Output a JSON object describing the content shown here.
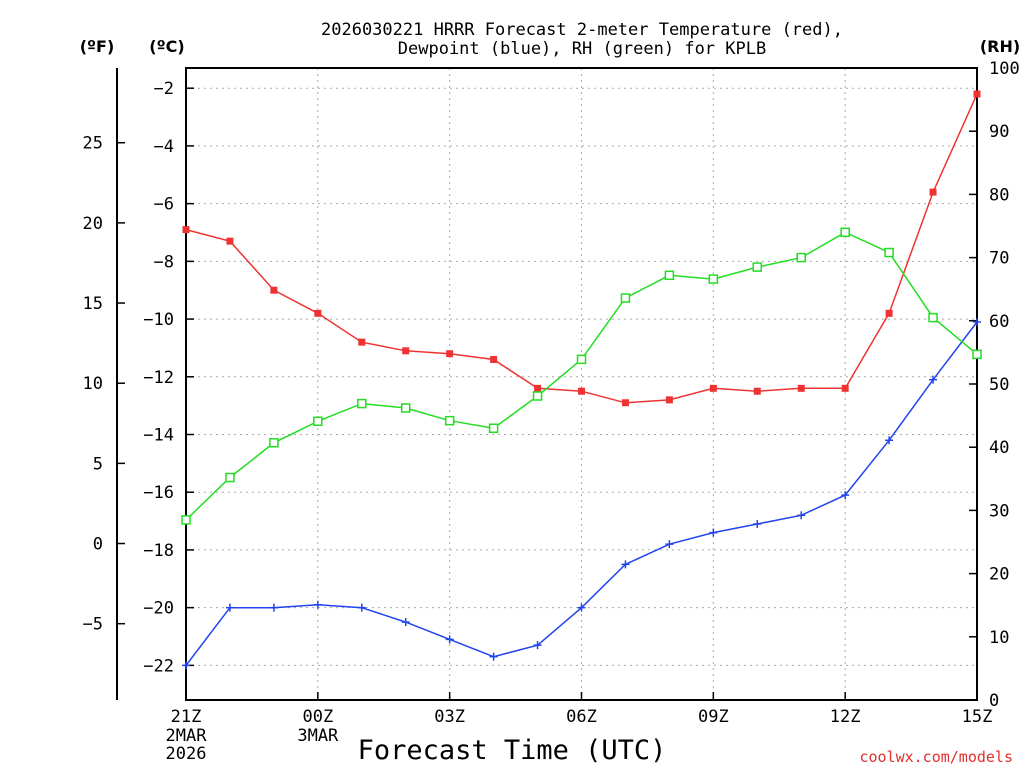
{
  "chart_data": {
    "type": "line",
    "title_line1": "2026030221 HRRR Forecast 2-meter Temperature (red),",
    "title_line2": "Dewpoint (blue), RH (green) for KPLB",
    "xlabel": "Forecast Time (UTC)",
    "unit_f": "(ºF)",
    "unit_c": "(ºC)",
    "unit_rh": "(RH)",
    "credit": "coolwx.com/models",
    "x_hours": [
      0,
      1,
      2,
      3,
      4,
      5,
      6,
      7,
      8,
      9,
      10,
      11,
      12,
      13,
      14,
      15,
      16,
      17,
      18
    ],
    "x_ticks": [
      {
        "h": 0,
        "label": "21Z",
        "sub1": "2MAR",
        "sub2": "2026"
      },
      {
        "h": 3,
        "label": "00Z",
        "sub1": "3MAR",
        "sub2": ""
      },
      {
        "h": 6,
        "label": "03Z",
        "sub1": "",
        "sub2": ""
      },
      {
        "h": 9,
        "label": "06Z",
        "sub1": "",
        "sub2": ""
      },
      {
        "h": 12,
        "label": "09Z",
        "sub1": "",
        "sub2": ""
      },
      {
        "h": 15,
        "label": "12Z",
        "sub1": "",
        "sub2": ""
      },
      {
        "h": 18,
        "label": "15Z",
        "sub1": "",
        "sub2": ""
      }
    ],
    "c_ticks": [
      -2,
      -4,
      -6,
      -8,
      -10,
      -12,
      -14,
      -16,
      -18,
      -20,
      -22
    ],
    "c_range": [
      -23.2,
      -1.3
    ],
    "f_ticks": [
      25,
      20,
      15,
      10,
      5,
      0,
      -5
    ],
    "rh_ticks": [
      0,
      10,
      20,
      30,
      40,
      50,
      60,
      70,
      80,
      90,
      100
    ],
    "rh_range": [
      0,
      100
    ],
    "series": [
      {
        "name": "Temperature",
        "unit": "C",
        "color": "#ee3333",
        "marker": "filled-square",
        "values": [
          -6.9,
          -7.3,
          -9.0,
          -9.8,
          -10.8,
          -11.1,
          -11.2,
          -11.4,
          -12.4,
          -12.5,
          -12.9,
          -12.8,
          -12.4,
          -12.5,
          -12.4,
          -12.4,
          -9.8,
          -5.6,
          -2.2
        ]
      },
      {
        "name": "Dewpoint",
        "unit": "C",
        "color": "#2244ee",
        "marker": "plus",
        "values": [
          -22.0,
          -20.0,
          -20.0,
          -19.9,
          -20.0,
          -20.5,
          -21.1,
          -21.7,
          -21.3,
          -20.0,
          -18.5,
          -17.8,
          -17.4,
          -17.1,
          -16.8,
          -16.1,
          -14.2,
          -12.1,
          -10.1
        ]
      },
      {
        "name": "RH",
        "unit": "%",
        "color": "#22dd22",
        "marker": "open-square",
        "values": [
          28.5,
          35.2,
          40.7,
          44.1,
          46.9,
          46.2,
          44.2,
          43.0,
          48.1,
          53.9,
          63.6,
          67.2,
          66.6,
          68.5,
          70.0,
          74.0,
          70.8,
          60.5,
          54.7
        ]
      }
    ]
  }
}
